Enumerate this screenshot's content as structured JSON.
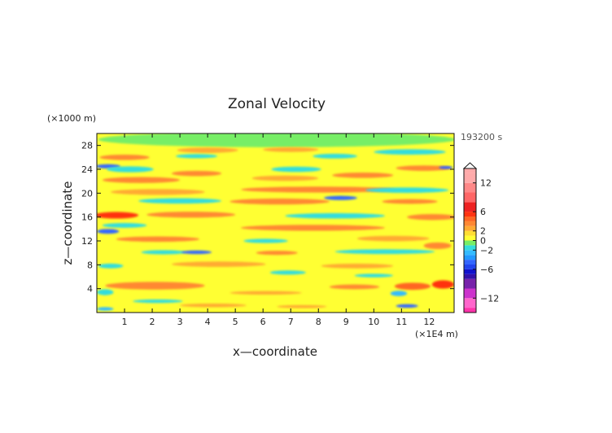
{
  "chart_data": {
    "type": "heatmap",
    "title": "Zonal Velocity",
    "xlabel": "x—coordinate",
    "ylabel": "z—coordinate",
    "x_unit": "(×1E4 m)",
    "y_unit": "(×1000 m)",
    "time_label": "193200 s",
    "xlim": [
      0,
      12.9
    ],
    "ylim": [
      0,
      30
    ],
    "x_ticks": [
      1,
      2,
      3,
      4,
      5,
      6,
      7,
      8,
      9,
      10,
      11,
      12
    ],
    "y_ticks": [
      4,
      8,
      12,
      16,
      20,
      24,
      28
    ],
    "colorbar": {
      "range": [
        -15,
        15
      ],
      "tick_values": [
        12,
        6,
        2,
        0,
        -2,
        -6,
        -12
      ],
      "tick_labels": [
        "12",
        "6",
        "2",
        "0",
        "−2",
        "−6",
        "−12"
      ],
      "levels": [
        {
          "min": -15,
          "max": -14,
          "color": "#ff33aa"
        },
        {
          "min": -14,
          "max": -12,
          "color": "#ff66cc"
        },
        {
          "min": -12,
          "max": -10,
          "color": "#cc33cc"
        },
        {
          "min": -10,
          "max": -8,
          "color": "#7722aa"
        },
        {
          "min": -8,
          "max": -7,
          "color": "#3311aa"
        },
        {
          "min": -7,
          "max": -6,
          "color": "#1111cc"
        },
        {
          "min": -6,
          "max": -5,
          "color": "#2244ee"
        },
        {
          "min": -5,
          "max": -4,
          "color": "#3366ff"
        },
        {
          "min": -4,
          "max": -3,
          "color": "#2299ff"
        },
        {
          "min": -3,
          "max": -2,
          "color": "#33bbff"
        },
        {
          "min": -2,
          "max": -1,
          "color": "#33dddd"
        },
        {
          "min": -1,
          "max": 0,
          "color": "#77ee66"
        },
        {
          "min": 0,
          "max": 1,
          "color": "#ffff33"
        },
        {
          "min": 1,
          "max": 2,
          "color": "#ffdd33"
        },
        {
          "min": 2,
          "max": 3,
          "color": "#ffaa33"
        },
        {
          "min": 3,
          "max": 4,
          "color": "#ff8833"
        },
        {
          "min": 4,
          "max": 5,
          "color": "#ff6622"
        },
        {
          "min": 5,
          "max": 6,
          "color": "#ff3311"
        },
        {
          "min": 6,
          "max": 8,
          "color": "#ee2222"
        },
        {
          "min": 8,
          "max": 10,
          "color": "#ff6666"
        },
        {
          "min": 10,
          "max": 12,
          "color": "#ff8888"
        },
        {
          "min": 12,
          "max": 14,
          "color": "#ffaaaa"
        }
      ]
    },
    "background_value": 0.3,
    "field": [
      {
        "x": 6.5,
        "z": 29.0,
        "width": 12.9,
        "height": 2.6,
        "value": -0.6
      },
      {
        "x": 4.0,
        "z": 27.2,
        "width": 2.2,
        "height": 0.9,
        "value": 2.5
      },
      {
        "x": 7.0,
        "z": 27.3,
        "width": 2.0,
        "height": 0.8,
        "value": 2.5
      },
      {
        "x": 11.3,
        "z": 26.9,
        "width": 2.6,
        "height": 0.9,
        "value": -1.5
      },
      {
        "x": 1.0,
        "z": 26.0,
        "width": 1.8,
        "height": 0.9,
        "value": 3.5
      },
      {
        "x": 3.6,
        "z": 26.2,
        "width": 1.5,
        "height": 0.7,
        "value": -1.5
      },
      {
        "x": 8.6,
        "z": 26.2,
        "width": 1.6,
        "height": 0.8,
        "value": -1.5
      },
      {
        "x": 0.4,
        "z": 24.5,
        "width": 0.9,
        "height": 0.7,
        "value": -4.5
      },
      {
        "x": 1.2,
        "z": 24.0,
        "width": 1.7,
        "height": 1.0,
        "value": -1.5
      },
      {
        "x": 3.6,
        "z": 23.3,
        "width": 1.8,
        "height": 0.9,
        "value": 3.5
      },
      {
        "x": 7.2,
        "z": 24.0,
        "width": 1.8,
        "height": 0.9,
        "value": -1.5
      },
      {
        "x": 11.8,
        "z": 24.2,
        "width": 2.0,
        "height": 0.9,
        "value": 3.5
      },
      {
        "x": 12.6,
        "z": 24.3,
        "width": 0.5,
        "height": 0.5,
        "value": -4.5
      },
      {
        "x": 1.6,
        "z": 22.2,
        "width": 2.8,
        "height": 1.0,
        "value": 3.5
      },
      {
        "x": 6.8,
        "z": 22.5,
        "width": 2.4,
        "height": 0.9,
        "value": 2.5
      },
      {
        "x": 9.6,
        "z": 23.0,
        "width": 2.2,
        "height": 0.9,
        "value": 3.5
      },
      {
        "x": 8.0,
        "z": 20.6,
        "width": 5.6,
        "height": 1.0,
        "value": 3.5
      },
      {
        "x": 2.2,
        "z": 20.2,
        "width": 3.4,
        "height": 1.0,
        "value": 2.5
      },
      {
        "x": 11.2,
        "z": 20.5,
        "width": 3.0,
        "height": 0.9,
        "value": -1.5
      },
      {
        "x": 8.8,
        "z": 19.2,
        "width": 1.2,
        "height": 0.7,
        "value": -4.5
      },
      {
        "x": 3.0,
        "z": 18.7,
        "width": 3.0,
        "height": 0.9,
        "value": -1.5
      },
      {
        "x": 6.6,
        "z": 18.6,
        "width": 3.6,
        "height": 1.0,
        "value": 3.5
      },
      {
        "x": 11.3,
        "z": 18.6,
        "width": 2.0,
        "height": 0.8,
        "value": 3.5
      },
      {
        "x": 0.7,
        "z": 16.3,
        "width": 1.6,
        "height": 1.1,
        "value": 5.5
      },
      {
        "x": 3.4,
        "z": 16.4,
        "width": 3.2,
        "height": 1.0,
        "value": 3.5
      },
      {
        "x": 8.6,
        "z": 16.2,
        "width": 3.6,
        "height": 0.9,
        "value": -1.5
      },
      {
        "x": 12.1,
        "z": 16.0,
        "width": 1.8,
        "height": 1.0,
        "value": 3.5
      },
      {
        "x": 1.0,
        "z": 14.6,
        "width": 1.6,
        "height": 0.8,
        "value": -1.5
      },
      {
        "x": 7.8,
        "z": 14.2,
        "width": 5.2,
        "height": 1.0,
        "value": 3.5
      },
      {
        "x": 0.4,
        "z": 13.6,
        "width": 0.8,
        "height": 0.8,
        "value": -4.5
      },
      {
        "x": 2.2,
        "z": 12.3,
        "width": 3.0,
        "height": 0.9,
        "value": 3.5
      },
      {
        "x": 10.7,
        "z": 12.4,
        "width": 2.6,
        "height": 0.9,
        "value": 2.5
      },
      {
        "x": 6.1,
        "z": 12.0,
        "width": 1.6,
        "height": 0.7,
        "value": -1.5
      },
      {
        "x": 10.4,
        "z": 10.2,
        "width": 3.6,
        "height": 0.8,
        "value": -1.5
      },
      {
        "x": 2.4,
        "z": 10.1,
        "width": 1.6,
        "height": 0.7,
        "value": -1.5
      },
      {
        "x": 3.6,
        "z": 10.1,
        "width": 1.1,
        "height": 0.6,
        "value": -4.5
      },
      {
        "x": 6.5,
        "z": 10.0,
        "width": 1.5,
        "height": 0.7,
        "value": 3.5
      },
      {
        "x": 12.3,
        "z": 11.2,
        "width": 1.0,
        "height": 1.1,
        "value": 3.5
      },
      {
        "x": 4.4,
        "z": 8.1,
        "width": 3.4,
        "height": 0.9,
        "value": 2.5
      },
      {
        "x": 0.5,
        "z": 7.8,
        "width": 0.9,
        "height": 0.8,
        "value": -1.5
      },
      {
        "x": 9.4,
        "z": 7.8,
        "width": 2.6,
        "height": 0.8,
        "value": 2.5
      },
      {
        "x": 6.9,
        "z": 6.7,
        "width": 1.3,
        "height": 0.7,
        "value": -1.5
      },
      {
        "x": 10.0,
        "z": 6.2,
        "width": 1.4,
        "height": 0.6,
        "value": -1.5
      },
      {
        "x": 2.1,
        "z": 4.5,
        "width": 3.6,
        "height": 1.3,
        "value": 3.5
      },
      {
        "x": 9.3,
        "z": 4.3,
        "width": 1.8,
        "height": 0.8,
        "value": 3.5
      },
      {
        "x": 11.4,
        "z": 4.4,
        "width": 1.3,
        "height": 1.2,
        "value": 4.5
      },
      {
        "x": 12.5,
        "z": 4.7,
        "width": 0.8,
        "height": 1.4,
        "value": 5.5
      },
      {
        "x": 10.9,
        "z": 3.2,
        "width": 0.6,
        "height": 0.9,
        "value": -2.5
      },
      {
        "x": 6.1,
        "z": 3.3,
        "width": 2.6,
        "height": 0.6,
        "value": 2.5
      },
      {
        "x": 0.3,
        "z": 3.4,
        "width": 0.6,
        "height": 1.0,
        "value": -1.5
      },
      {
        "x": 2.2,
        "z": 1.9,
        "width": 1.8,
        "height": 0.6,
        "value": -1.5
      },
      {
        "x": 4.2,
        "z": 1.2,
        "width": 2.4,
        "height": 0.6,
        "value": 2.5
      },
      {
        "x": 7.4,
        "z": 1.0,
        "width": 1.8,
        "height": 0.5,
        "value": 2.5
      },
      {
        "x": 11.2,
        "z": 1.1,
        "width": 0.8,
        "height": 0.6,
        "value": -4.5
      },
      {
        "x": 0.3,
        "z": 0.6,
        "width": 0.6,
        "height": 0.6,
        "value": -2.5
      }
    ]
  }
}
